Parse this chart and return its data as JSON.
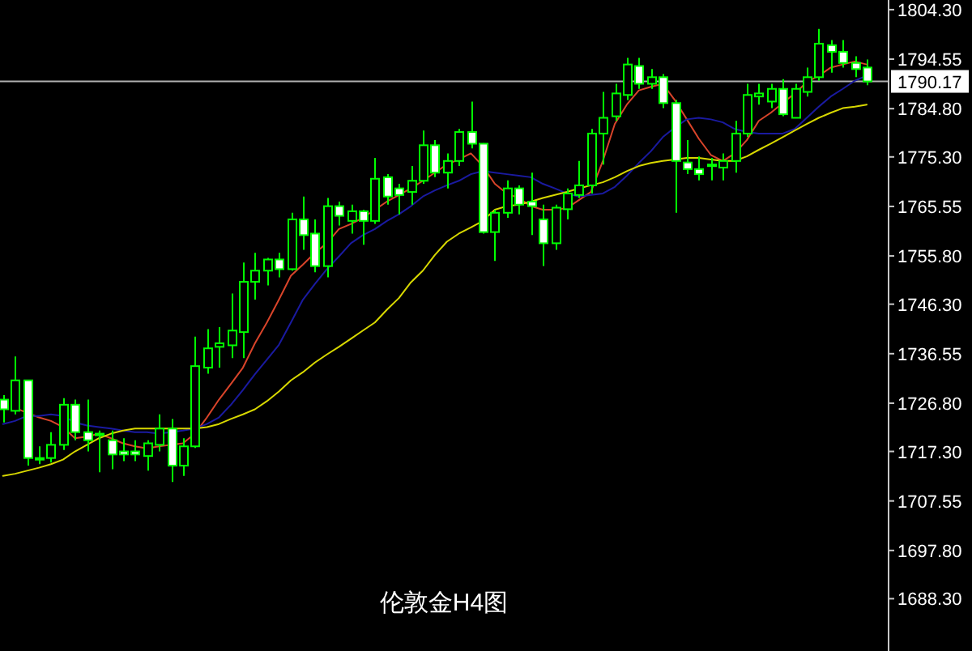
{
  "chart_data": {
    "type": "candlestick",
    "title": "伦敦金H4图",
    "categories": [
      null,
      null,
      null,
      null,
      null,
      null,
      null,
      null,
      null,
      null,
      null,
      null,
      null,
      null,
      null,
      null,
      null,
      null,
      null,
      null,
      null,
      null,
      null,
      null,
      null,
      null,
      null,
      null,
      null,
      null,
      null,
      null,
      null,
      null,
      null,
      null,
      null,
      null,
      null,
      null,
      null,
      null,
      null,
      null,
      null,
      null,
      null,
      null,
      null,
      null,
      null,
      null,
      null,
      null,
      null,
      null,
      null,
      null,
      null,
      null,
      null,
      null,
      null,
      null,
      null,
      null,
      null,
      null,
      null,
      null,
      null,
      null,
      null
    ],
    "ohlc": [
      [
        1727.5,
        1728.4,
        1723.0,
        1725.6
      ],
      [
        1725.3,
        1736.0,
        1724.6,
        1731.3
      ],
      [
        1731.3,
        1731.3,
        1714.5,
        1716.0
      ],
      [
        1716.0,
        1718.3,
        1714.8,
        1715.8
      ],
      [
        1716.0,
        1721.1,
        1715.1,
        1718.6
      ],
      [
        1718.6,
        1727.8,
        1717.6,
        1726.5
      ],
      [
        1726.5,
        1727.5,
        1719.5,
        1721.1
      ],
      [
        1721.1,
        1727.5,
        1717.3,
        1719.5
      ],
      [
        1720.8,
        1721.4,
        1713.2,
        1720.5
      ],
      [
        1719.5,
        1721.4,
        1713.8,
        1716.7
      ],
      [
        1717.3,
        1719.9,
        1715.4,
        1716.7
      ],
      [
        1717.3,
        1719.5,
        1715.4,
        1716.7
      ],
      [
        1716.4,
        1719.5,
        1713.5,
        1718.9
      ],
      [
        1718.6,
        1724.6,
        1717.3,
        1721.8
      ],
      [
        1721.8,
        1723.7,
        1711.3,
        1714.5
      ],
      [
        1714.5,
        1719.9,
        1712.5,
        1718.3
      ],
      [
        1718.3,
        1739.9,
        1718.0,
        1734.1
      ],
      [
        1733.8,
        1741.4,
        1732.6,
        1737.6
      ],
      [
        1737.9,
        1741.8,
        1733.8,
        1738.6
      ],
      [
        1738.2,
        1748.4,
        1735.7,
        1741.1
      ],
      [
        1740.8,
        1754.5,
        1735.7,
        1750.7
      ],
      [
        1750.7,
        1756.4,
        1747.2,
        1752.9
      ],
      [
        1752.9,
        1755.4,
        1750.0,
        1755.1
      ],
      [
        1755.1,
        1756.4,
        1751.6,
        1753.2
      ],
      [
        1753.2,
        1764.3,
        1752.9,
        1763.0
      ],
      [
        1763.0,
        1767.5,
        1757.0,
        1759.9
      ],
      [
        1760.2,
        1763.0,
        1752.6,
        1753.8
      ],
      [
        1753.8,
        1767.2,
        1751.6,
        1765.6
      ],
      [
        1765.6,
        1766.5,
        1761.8,
        1763.7
      ],
      [
        1762.7,
        1765.9,
        1760.2,
        1764.6
      ],
      [
        1764.6,
        1764.9,
        1758.0,
        1762.7
      ],
      [
        1762.7,
        1775.1,
        1762.1,
        1771.0
      ],
      [
        1771.3,
        1771.9,
        1765.9,
        1767.5
      ],
      [
        1769.1,
        1770.0,
        1764.0,
        1767.8
      ],
      [
        1768.4,
        1773.5,
        1765.9,
        1770.6
      ],
      [
        1770.6,
        1780.5,
        1770.0,
        1777.6
      ],
      [
        1777.6,
        1778.6,
        1771.3,
        1772.2
      ],
      [
        1772.2,
        1776.0,
        1769.1,
        1774.5
      ],
      [
        1774.5,
        1780.8,
        1773.5,
        1780.2
      ],
      [
        1780.2,
        1786.2,
        1777.0,
        1777.9
      ],
      [
        1777.9,
        1778.0,
        1760.2,
        1760.5
      ],
      [
        1760.5,
        1764.9,
        1754.8,
        1764.3
      ],
      [
        1764.3,
        1770.7,
        1763.3,
        1769.1
      ],
      [
        1769.1,
        1769.7,
        1764.0,
        1765.9
      ],
      [
        1766.5,
        1772.2,
        1759.9,
        1765.6
      ],
      [
        1763.0,
        1765.9,
        1753.8,
        1758.3
      ],
      [
        1758.3,
        1765.9,
        1757.0,
        1765.3
      ],
      [
        1765.0,
        1769.1,
        1763.0,
        1768.1
      ],
      [
        1767.8,
        1774.5,
        1767.2,
        1769.7
      ],
      [
        1769.7,
        1780.8,
        1768.1,
        1779.9
      ],
      [
        1779.9,
        1788.1,
        1773.8,
        1783.0
      ],
      [
        1783.3,
        1789.7,
        1782.4,
        1787.8
      ],
      [
        1787.5,
        1794.8,
        1786.5,
        1793.5
      ],
      [
        1793.2,
        1794.8,
        1788.7,
        1789.7
      ],
      [
        1789.7,
        1792.6,
        1788.7,
        1791.0
      ],
      [
        1791.0,
        1791.6,
        1784.9,
        1785.9
      ],
      [
        1785.9,
        1786.5,
        1764.3,
        1774.5
      ],
      [
        1774.2,
        1778.6,
        1771.9,
        1772.9
      ],
      [
        1772.9,
        1775.4,
        1770.7,
        1771.9
      ],
      [
        1773.5,
        1775.1,
        1770.7,
        1773.8
      ],
      [
        1773.2,
        1776.0,
        1770.7,
        1774.5
      ],
      [
        1774.5,
        1782.4,
        1772.2,
        1779.9
      ],
      [
        1779.9,
        1789.7,
        1779.2,
        1787.5
      ],
      [
        1787.2,
        1789.7,
        1785.6,
        1787.8
      ],
      [
        1786.2,
        1789.7,
        1784.9,
        1788.7
      ],
      [
        1788.7,
        1790.6,
        1783.3,
        1783.7
      ],
      [
        1783.0,
        1789.7,
        1783.0,
        1788.7
      ],
      [
        1788.1,
        1792.9,
        1787.2,
        1791.0
      ],
      [
        1791.0,
        1800.5,
        1790.3,
        1797.6
      ],
      [
        1797.3,
        1798.3,
        1791.9,
        1796.0
      ],
      [
        1796.0,
        1798.3,
        1792.9,
        1793.8
      ],
      [
        1793.8,
        1795.1,
        1791.0,
        1792.6
      ],
      [
        1792.9,
        1794.5,
        1789.4,
        1790.17
      ]
    ],
    "series": [
      {
        "type": "line",
        "color": "#d9442a",
        "values": [
          null,
          1725.9,
          1724.9,
          1724.0,
          1723.3,
          1722.1,
          1719.9,
          1720.2,
          1720.8,
          1719.9,
          1718.9,
          1718.3,
          1717.9,
          1718.3,
          1718.6,
          1718.9,
          1720.8,
          1724.0,
          1727.5,
          1730.6,
          1733.8,
          1738.6,
          1742.7,
          1747.2,
          1751.9,
          1754.1,
          1756.4,
          1758.3,
          1761.1,
          1762.1,
          1763.3,
          1764.9,
          1766.5,
          1767.8,
          1769.1,
          1770.6,
          1772.2,
          1773.8,
          1774.8,
          1776.0,
          1773.5,
          1770.0,
          1768.1,
          1767.2,
          1765.6,
          1764.9,
          1764.9,
          1765.2,
          1766.8,
          1768.4,
          1774.5,
          1781.8,
          1785.6,
          1788.4,
          1789.1,
          1789.7,
          1786.5,
          1782.7,
          1778.9,
          1775.7,
          1774.5,
          1776.0,
          1778.6,
          1782.4,
          1784.0,
          1785.9,
          1787.8,
          1790.0,
          1791.3,
          1792.9,
          1793.5,
          1794.1,
          1793.5
        ]
      },
      {
        "type": "line",
        "color": "#1a1aa0",
        "values": [
          1722.7,
          1723.3,
          1724.3,
          1724.3,
          1724.6,
          1724.3,
          1723.0,
          1722.4,
          1722.1,
          1721.8,
          1721.4,
          1721.1,
          1721.1,
          1720.8,
          1721.1,
          1721.4,
          1721.8,
          1722.7,
          1724.0,
          1726.5,
          1729.4,
          1732.5,
          1735.4,
          1738.3,
          1742.7,
          1747.2,
          1750.3,
          1753.2,
          1755.7,
          1758.3,
          1759.9,
          1761.1,
          1762.7,
          1764.0,
          1765.6,
          1767.5,
          1768.7,
          1769.7,
          1770.6,
          1771.9,
          1772.5,
          1772.2,
          1771.9,
          1771.6,
          1771.3,
          1770.0,
          1769.1,
          1768.1,
          1767.5,
          1767.8,
          1768.1,
          1769.4,
          1771.6,
          1774.1,
          1776.4,
          1779.2,
          1781.1,
          1782.7,
          1783.0,
          1782.7,
          1782.1,
          1780.8,
          1780.2,
          1779.9,
          1779.9,
          1779.9,
          1780.8,
          1783.0,
          1785.2,
          1787.2,
          1788.7,
          1790.3,
          1791.3
        ]
      },
      {
        "type": "line",
        "color": "#d8d800",
        "values": [
          1712.5,
          1712.9,
          1713.5,
          1714.1,
          1714.8,
          1715.7,
          1717.3,
          1718.6,
          1719.9,
          1720.8,
          1721.4,
          1721.8,
          1721.8,
          1721.8,
          1721.8,
          1721.8,
          1721.8,
          1722.1,
          1722.7,
          1723.7,
          1724.6,
          1725.6,
          1727.2,
          1729.1,
          1731.3,
          1732.9,
          1734.8,
          1736.4,
          1737.9,
          1739.5,
          1741.1,
          1742.7,
          1745.2,
          1747.5,
          1750.6,
          1752.9,
          1756.0,
          1758.6,
          1760.2,
          1761.4,
          1762.7,
          1764.9,
          1765.6,
          1765.9,
          1766.5,
          1767.2,
          1767.8,
          1768.4,
          1769.1,
          1769.7,
          1770.3,
          1771.3,
          1772.5,
          1773.5,
          1774.1,
          1774.5,
          1774.8,
          1775.1,
          1775.1,
          1774.8,
          1774.5,
          1774.5,
          1775.4,
          1776.7,
          1777.9,
          1779.2,
          1780.5,
          1781.8,
          1783.0,
          1784.0,
          1784.9,
          1785.2,
          1785.6
        ]
      }
    ],
    "ylim": [
      1678.0,
      1806.2
    ],
    "yticks": [
      {
        "value": 1804.3,
        "label": "1804.30"
      },
      {
        "value": 1794.55,
        "label": "1794.55"
      },
      {
        "value": 1784.8,
        "label": "1784.80"
      },
      {
        "value": 1775.3,
        "label": "1775.30"
      },
      {
        "value": 1765.55,
        "label": "1765.55"
      },
      {
        "value": 1755.8,
        "label": "1755.80"
      },
      {
        "value": 1746.3,
        "label": "1746.30"
      },
      {
        "value": 1736.55,
        "label": "1736.55"
      },
      {
        "value": 1726.8,
        "label": "1726.80"
      },
      {
        "value": 1717.3,
        "label": "1717.30"
      },
      {
        "value": 1707.55,
        "label": "1707.55"
      },
      {
        "value": 1697.8,
        "label": "1697.80"
      },
      {
        "value": 1688.3,
        "label": "1688.30"
      }
    ],
    "tick_labels": "y",
    "ref_lines": [
      {
        "axis": "y",
        "value": 1790.17,
        "label": "1790.17",
        "color": "#b0b0b0"
      }
    ]
  }
}
